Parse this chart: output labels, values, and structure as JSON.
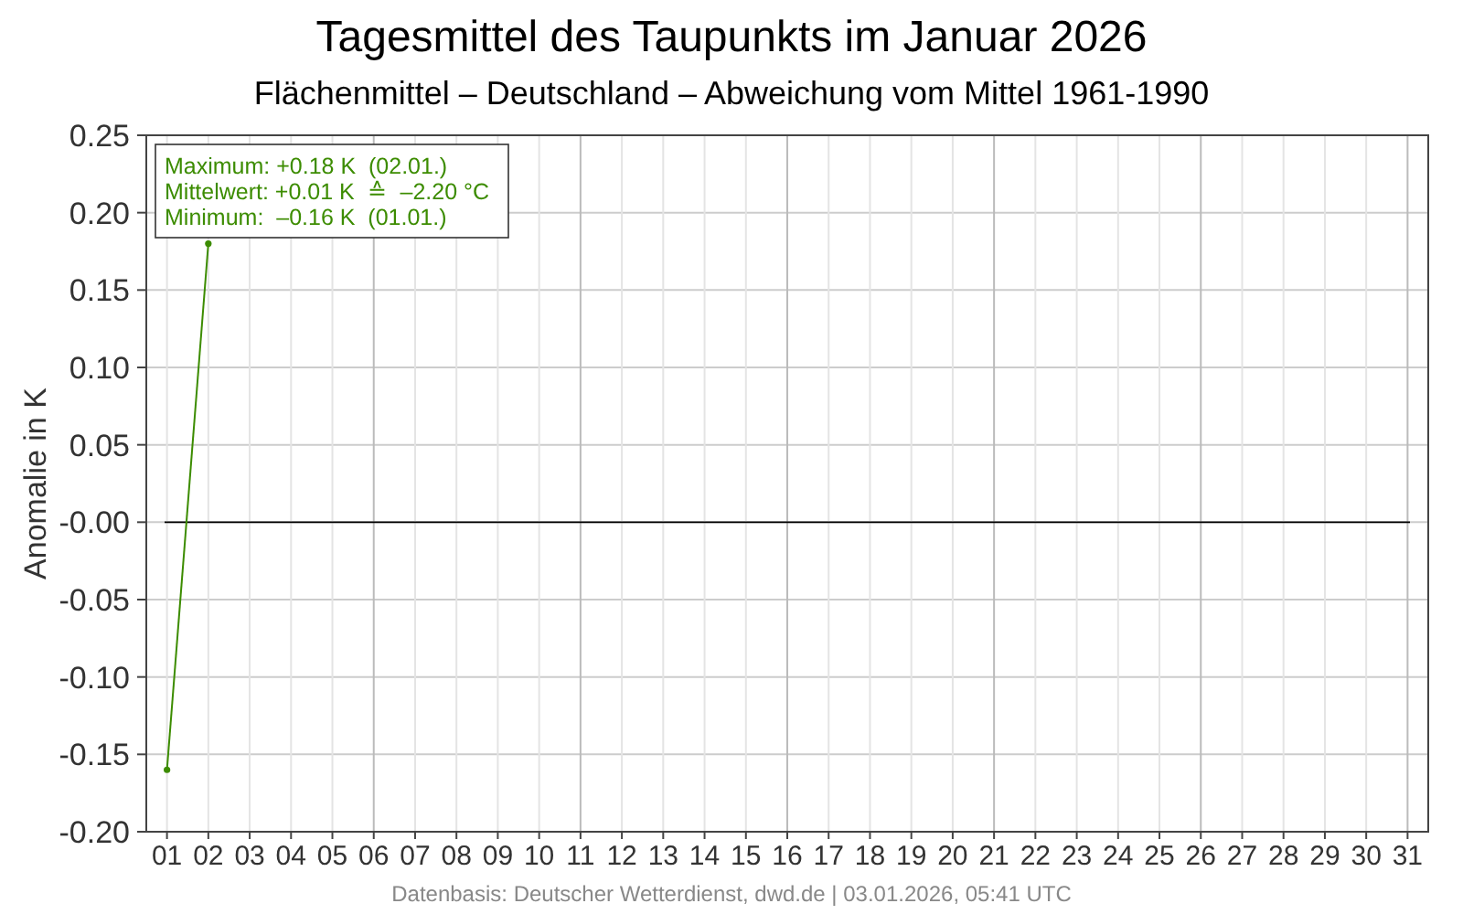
{
  "chart_data": {
    "type": "line",
    "title": "Tagesmittel des Taupunkts im Januar 2026",
    "subtitle": "Flächenmittel – Deutschland – Abweichung vom Mittel 1961-1990",
    "ylabel": "Anomalie in K",
    "categories": [
      "01",
      "02",
      "03",
      "04",
      "05",
      "06",
      "07",
      "08",
      "09",
      "10",
      "11",
      "12",
      "13",
      "14",
      "15",
      "16",
      "17",
      "18",
      "19",
      "20",
      "21",
      "22",
      "23",
      "24",
      "25",
      "26",
      "27",
      "28",
      "29",
      "30",
      "31"
    ],
    "series": [
      {
        "color": "#3c8c00",
        "values": [
          -0.16,
          0.18,
          null,
          null,
          null,
          null,
          null,
          null,
          null,
          null,
          null,
          null,
          null,
          null,
          null,
          null,
          null,
          null,
          null,
          null,
          null,
          null,
          null,
          null,
          null,
          null,
          null,
          null,
          null,
          null,
          null
        ]
      }
    ],
    "ylim": [
      -0.2,
      0.25
    ],
    "yticks": [
      {
        "value": -0.2,
        "label": "-0.20"
      },
      {
        "value": -0.15,
        "label": "-0.15"
      },
      {
        "value": -0.1,
        "label": "-0.10"
      },
      {
        "value": -0.05,
        "label": "-0.05"
      },
      {
        "value": 0,
        "label": "-0.00"
      },
      {
        "value": 0.05,
        "label": "0.05"
      },
      {
        "value": 0.1,
        "label": "0.10"
      },
      {
        "value": 0.15,
        "label": "0.15"
      },
      {
        "value": 0.2,
        "label": "0.20"
      },
      {
        "value": 0.25,
        "label": "0.25"
      }
    ],
    "grid": true,
    "marker": "circle",
    "line_style": "solid",
    "ref_lines": [
      {
        "axis": "y",
        "value": 0,
        "color": "#000000"
      }
    ],
    "annotations": [
      "Maximum: +0.18 K  (02.01.)",
      "Mittelwert: +0.01 K  ≙  –2.20 °C",
      "Minimum:  –0.16 K  (01.01.)",
      "Datenbasis: Deutscher Wetterdienst, dwd.de | 03.01.2026, 05:41 UTC"
    ]
  }
}
